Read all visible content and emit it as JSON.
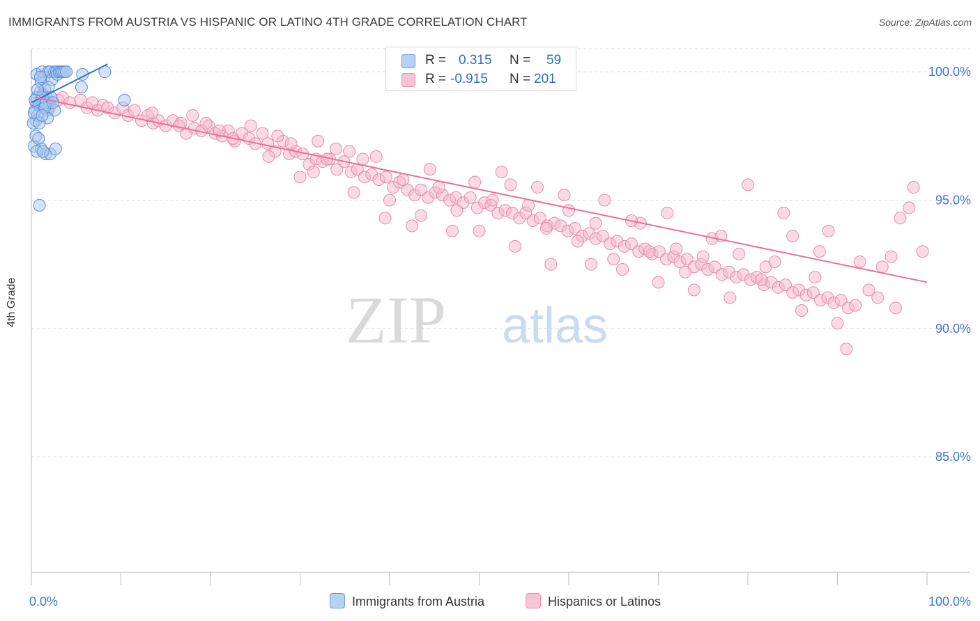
{
  "title": "IMMIGRANTS FROM AUSTRIA VS HISPANIC OR LATINO 4TH GRADE CORRELATION CHART",
  "source": "Source: ZipAtlas.com",
  "watermark": {
    "zip": "ZIP",
    "atlas": "atlas"
  },
  "legend": {
    "series1": {
      "r_label": "R =",
      "r_value": "0.315",
      "n_label": "N =",
      "n_value": "59"
    },
    "series2": {
      "r_label": "R =",
      "r_value": "-0.915",
      "n_label": "N =",
      "n_value": "201"
    }
  },
  "bottom_legend": {
    "series1": "Immigrants from Austria",
    "series2": "Hispanics or Latinos"
  },
  "colors": {
    "blue_fill": "#a9c8f0",
    "blue_stroke": "#5b8fd6",
    "blue_line": "#2e72c8",
    "pink_fill": "#f6b8cb",
    "pink_stroke": "#e98aa8",
    "pink_line": "#e8709a",
    "grid": "#dcdcdc",
    "tick_text": "#3f79cc",
    "axis": "#bbbbbb"
  },
  "chart_data": {
    "type": "scatter",
    "title": "IMMIGRANTS FROM AUSTRIA VS HISPANIC OR LATINO 4TH GRADE CORRELATION CHART",
    "xlabel": "",
    "ylabel": "4th Grade",
    "xlim": [
      0,
      100
    ],
    "ylim": [
      80.5,
      100.9
    ],
    "x_tick_labels": [
      "0.0%",
      "100.0%"
    ],
    "y_ticks": [
      100,
      95,
      90,
      85
    ],
    "y_tick_labels": [
      "100.0%",
      "95.0%",
      "90.0%",
      "85.0%"
    ],
    "grid": true,
    "series": [
      {
        "name": "Immigrants from Austria",
        "trend": {
          "x": [
            0,
            8.5
          ],
          "y": [
            98.8,
            100.3
          ]
        },
        "points": [
          [
            0.6,
            99.9
          ],
          [
            0.6,
            99.0
          ],
          [
            0.8,
            98.7
          ],
          [
            1.0,
            99.2
          ],
          [
            1.1,
            99.6
          ],
          [
            1.2,
            100.0
          ],
          [
            1.4,
            99.8
          ],
          [
            1.5,
            99.3
          ],
          [
            1.7,
            99.0
          ],
          [
            1.9,
            100.0
          ],
          [
            2.1,
            100.0
          ],
          [
            2.3,
            99.7
          ],
          [
            2.6,
            100.0
          ],
          [
            2.8,
            100.0
          ],
          [
            2.9,
            99.9
          ],
          [
            3.1,
            100.0
          ],
          [
            3.3,
            100.0
          ],
          [
            3.5,
            100.0
          ],
          [
            3.7,
            100.0
          ],
          [
            3.9,
            100.0
          ],
          [
            0.4,
            98.5
          ],
          [
            0.5,
            98.1
          ],
          [
            0.7,
            98.3
          ],
          [
            0.9,
            98.7
          ],
          [
            1.1,
            98.9
          ],
          [
            1.3,
            99.1
          ],
          [
            1.5,
            98.8
          ],
          [
            1.8,
            98.5
          ],
          [
            2.0,
            98.8
          ],
          [
            2.6,
            98.5
          ],
          [
            0.3,
            97.1
          ],
          [
            0.5,
            97.5
          ],
          [
            0.8,
            97.4
          ],
          [
            1.1,
            97.0
          ],
          [
            1.6,
            96.8
          ],
          [
            2.1,
            96.8
          ],
          [
            2.7,
            97.0
          ],
          [
            0.6,
            96.9
          ],
          [
            1.3,
            96.9
          ],
          [
            0.9,
            94.8
          ],
          [
            1.0,
            99.8
          ],
          [
            1.2,
            99.0
          ],
          [
            1.4,
            98.7
          ],
          [
            1.6,
            98.8
          ],
          [
            1.9,
            99.4
          ],
          [
            2.2,
            99.0
          ],
          [
            0.2,
            98.0
          ],
          [
            0.4,
            98.9
          ],
          [
            0.7,
            99.3
          ],
          [
            1.8,
            98.2
          ],
          [
            5.7,
            99.9
          ],
          [
            8.2,
            100.0
          ],
          [
            5.6,
            99.4
          ],
          [
            10.4,
            98.9
          ],
          [
            0.3,
            98.4
          ],
          [
            1.5,
            98.6
          ],
          [
            0.9,
            98.0
          ],
          [
            2.4,
            98.8
          ],
          [
            1.2,
            98.3
          ]
        ]
      },
      {
        "name": "Hispanics or Latinos",
        "trend": {
          "x": [
            0.5,
            100
          ],
          "y": [
            99.0,
            91.8
          ]
        },
        "points": [
          [
            0.5,
            98.8
          ],
          [
            1.2,
            98.9
          ],
          [
            2.0,
            98.6
          ],
          [
            3.0,
            98.9
          ],
          [
            3.5,
            99.0
          ],
          [
            4.3,
            98.8
          ],
          [
            5.5,
            98.9
          ],
          [
            6.2,
            98.6
          ],
          [
            6.8,
            98.8
          ],
          [
            7.4,
            98.5
          ],
          [
            8.0,
            98.7
          ],
          [
            8.5,
            98.6
          ],
          [
            9.3,
            98.4
          ],
          [
            10.2,
            98.6
          ],
          [
            10.8,
            98.3
          ],
          [
            11.5,
            98.5
          ],
          [
            12.3,
            98.1
          ],
          [
            13.0,
            98.3
          ],
          [
            13.6,
            98.0
          ],
          [
            14.2,
            98.1
          ],
          [
            15.0,
            97.9
          ],
          [
            15.8,
            98.1
          ],
          [
            16.7,
            98.0
          ],
          [
            17.3,
            97.6
          ],
          [
            18.2,
            97.8
          ],
          [
            19.0,
            97.7
          ],
          [
            19.8,
            97.9
          ],
          [
            20.5,
            97.6
          ],
          [
            21.3,
            97.5
          ],
          [
            22.0,
            97.7
          ],
          [
            22.7,
            97.3
          ],
          [
            23.5,
            97.6
          ],
          [
            24.3,
            97.4
          ],
          [
            25.0,
            97.2
          ],
          [
            25.8,
            97.6
          ],
          [
            26.4,
            97.2
          ],
          [
            27.2,
            96.9
          ],
          [
            28.1,
            97.3
          ],
          [
            28.8,
            96.8
          ],
          [
            29.5,
            96.9
          ],
          [
            30.3,
            96.8
          ],
          [
            31.0,
            96.4
          ],
          [
            31.8,
            96.6
          ],
          [
            32.5,
            96.5
          ],
          [
            33.3,
            96.6
          ],
          [
            34.1,
            96.2
          ],
          [
            34.9,
            96.5
          ],
          [
            35.7,
            96.1
          ],
          [
            36.4,
            96.2
          ],
          [
            37.2,
            95.9
          ],
          [
            38.0,
            96.0
          ],
          [
            38.8,
            95.8
          ],
          [
            39.6,
            95.9
          ],
          [
            40.4,
            95.5
          ],
          [
            41.1,
            95.7
          ],
          [
            42.0,
            95.4
          ],
          [
            42.8,
            95.2
          ],
          [
            43.5,
            95.4
          ],
          [
            44.3,
            95.1
          ],
          [
            45.1,
            95.3
          ],
          [
            45.9,
            95.2
          ],
          [
            46.7,
            95.0
          ],
          [
            47.4,
            95.1
          ],
          [
            48.2,
            94.9
          ],
          [
            49.0,
            95.1
          ],
          [
            49.8,
            94.7
          ],
          [
            50.6,
            94.9
          ],
          [
            51.3,
            94.8
          ],
          [
            52.1,
            94.5
          ],
          [
            52.9,
            94.6
          ],
          [
            53.7,
            94.5
          ],
          [
            54.5,
            94.3
          ],
          [
            55.2,
            94.5
          ],
          [
            56.0,
            94.2
          ],
          [
            56.8,
            94.3
          ],
          [
            57.6,
            94.0
          ],
          [
            58.4,
            94.1
          ],
          [
            59.1,
            94.0
          ],
          [
            59.9,
            93.8
          ],
          [
            60.7,
            93.9
          ],
          [
            61.5,
            93.6
          ],
          [
            62.3,
            93.7
          ],
          [
            63.0,
            93.5
          ],
          [
            63.8,
            93.6
          ],
          [
            64.6,
            93.3
          ],
          [
            65.4,
            93.4
          ],
          [
            66.2,
            93.2
          ],
          [
            67.0,
            93.3
          ],
          [
            67.8,
            93.0
          ],
          [
            68.5,
            93.1
          ],
          [
            69.3,
            92.9
          ],
          [
            70.1,
            93.0
          ],
          [
            70.9,
            92.7
          ],
          [
            71.7,
            92.8
          ],
          [
            72.4,
            92.6
          ],
          [
            73.2,
            92.7
          ],
          [
            74.0,
            92.4
          ],
          [
            74.8,
            92.5
          ],
          [
            75.5,
            92.3
          ],
          [
            76.3,
            92.4
          ],
          [
            77.1,
            92.1
          ],
          [
            77.9,
            92.2
          ],
          [
            78.7,
            92.0
          ],
          [
            79.5,
            92.1
          ],
          [
            80.3,
            91.9
          ],
          [
            81.0,
            92.0
          ],
          [
            81.8,
            91.7
          ],
          [
            82.6,
            91.8
          ],
          [
            83.4,
            91.6
          ],
          [
            84.2,
            91.7
          ],
          [
            85.0,
            91.4
          ],
          [
            85.7,
            91.5
          ],
          [
            86.5,
            91.3
          ],
          [
            87.3,
            91.4
          ],
          [
            88.1,
            91.1
          ],
          [
            88.9,
            91.2
          ],
          [
            89.6,
            91.0
          ],
          [
            90.4,
            91.1
          ],
          [
            91.2,
            90.8
          ],
          [
            92.0,
            90.9
          ],
          [
            30.0,
            95.9
          ],
          [
            33.0,
            96.6
          ],
          [
            36.0,
            95.3
          ],
          [
            39.5,
            94.3
          ],
          [
            42.5,
            94.0
          ],
          [
            44.5,
            96.2
          ],
          [
            47.0,
            93.8
          ],
          [
            50.0,
            93.8
          ],
          [
            52.5,
            96.1
          ],
          [
            54.0,
            93.2
          ],
          [
            56.5,
            95.5
          ],
          [
            58.0,
            92.5
          ],
          [
            60.0,
            94.6
          ],
          [
            62.5,
            92.5
          ],
          [
            64.0,
            95.0
          ],
          [
            66.0,
            92.3
          ],
          [
            68.0,
            94.1
          ],
          [
            70.0,
            91.8
          ],
          [
            72.0,
            93.1
          ],
          [
            74.0,
            91.5
          ],
          [
            76.0,
            93.5
          ],
          [
            78.0,
            91.2
          ],
          [
            80.0,
            95.6
          ],
          [
            82.0,
            92.4
          ],
          [
            84.0,
            94.5
          ],
          [
            86.0,
            90.7
          ],
          [
            88.0,
            93.0
          ],
          [
            90.0,
            90.2
          ],
          [
            92.5,
            92.6
          ],
          [
            95.0,
            92.4
          ],
          [
            96.5,
            90.8
          ],
          [
            98.0,
            94.7
          ],
          [
            99.5,
            93.0
          ],
          [
            97.0,
            94.3
          ],
          [
            93.5,
            91.5
          ],
          [
            91.0,
            89.2
          ],
          [
            94.5,
            91.2
          ],
          [
            96.0,
            92.8
          ],
          [
            98.5,
            95.5
          ],
          [
            89.0,
            93.8
          ],
          [
            87.5,
            92.0
          ],
          [
            85.0,
            93.6
          ],
          [
            83.0,
            92.6
          ],
          [
            81.5,
            91.9
          ],
          [
            79.0,
            92.9
          ],
          [
            77.0,
            93.6
          ],
          [
            75.0,
            92.8
          ],
          [
            73.0,
            92.2
          ],
          [
            71.0,
            94.5
          ],
          [
            69.0,
            93.0
          ],
          [
            67.0,
            94.2
          ],
          [
            65.0,
            92.7
          ],
          [
            63.0,
            94.1
          ],
          [
            61.0,
            93.4
          ],
          [
            59.5,
            95.2
          ],
          [
            57.5,
            93.9
          ],
          [
            55.5,
            94.8
          ],
          [
            53.5,
            95.6
          ],
          [
            51.5,
            95.0
          ],
          [
            49.5,
            95.7
          ],
          [
            47.5,
            94.6
          ],
          [
            45.5,
            95.5
          ],
          [
            43.5,
            94.4
          ],
          [
            41.5,
            95.8
          ],
          [
            40.0,
            95.0
          ],
          [
            38.5,
            96.7
          ],
          [
            37.0,
            96.6
          ],
          [
            35.5,
            96.9
          ],
          [
            34.0,
            97.0
          ],
          [
            32.0,
            97.3
          ],
          [
            31.5,
            96.1
          ],
          [
            29.0,
            97.2
          ],
          [
            27.5,
            97.5
          ],
          [
            26.5,
            96.7
          ],
          [
            24.5,
            97.9
          ],
          [
            22.5,
            97.4
          ],
          [
            21.0,
            97.7
          ],
          [
            19.5,
            98.0
          ],
          [
            18.0,
            98.3
          ],
          [
            16.5,
            97.9
          ],
          [
            13.5,
            98.4
          ]
        ]
      }
    ]
  }
}
